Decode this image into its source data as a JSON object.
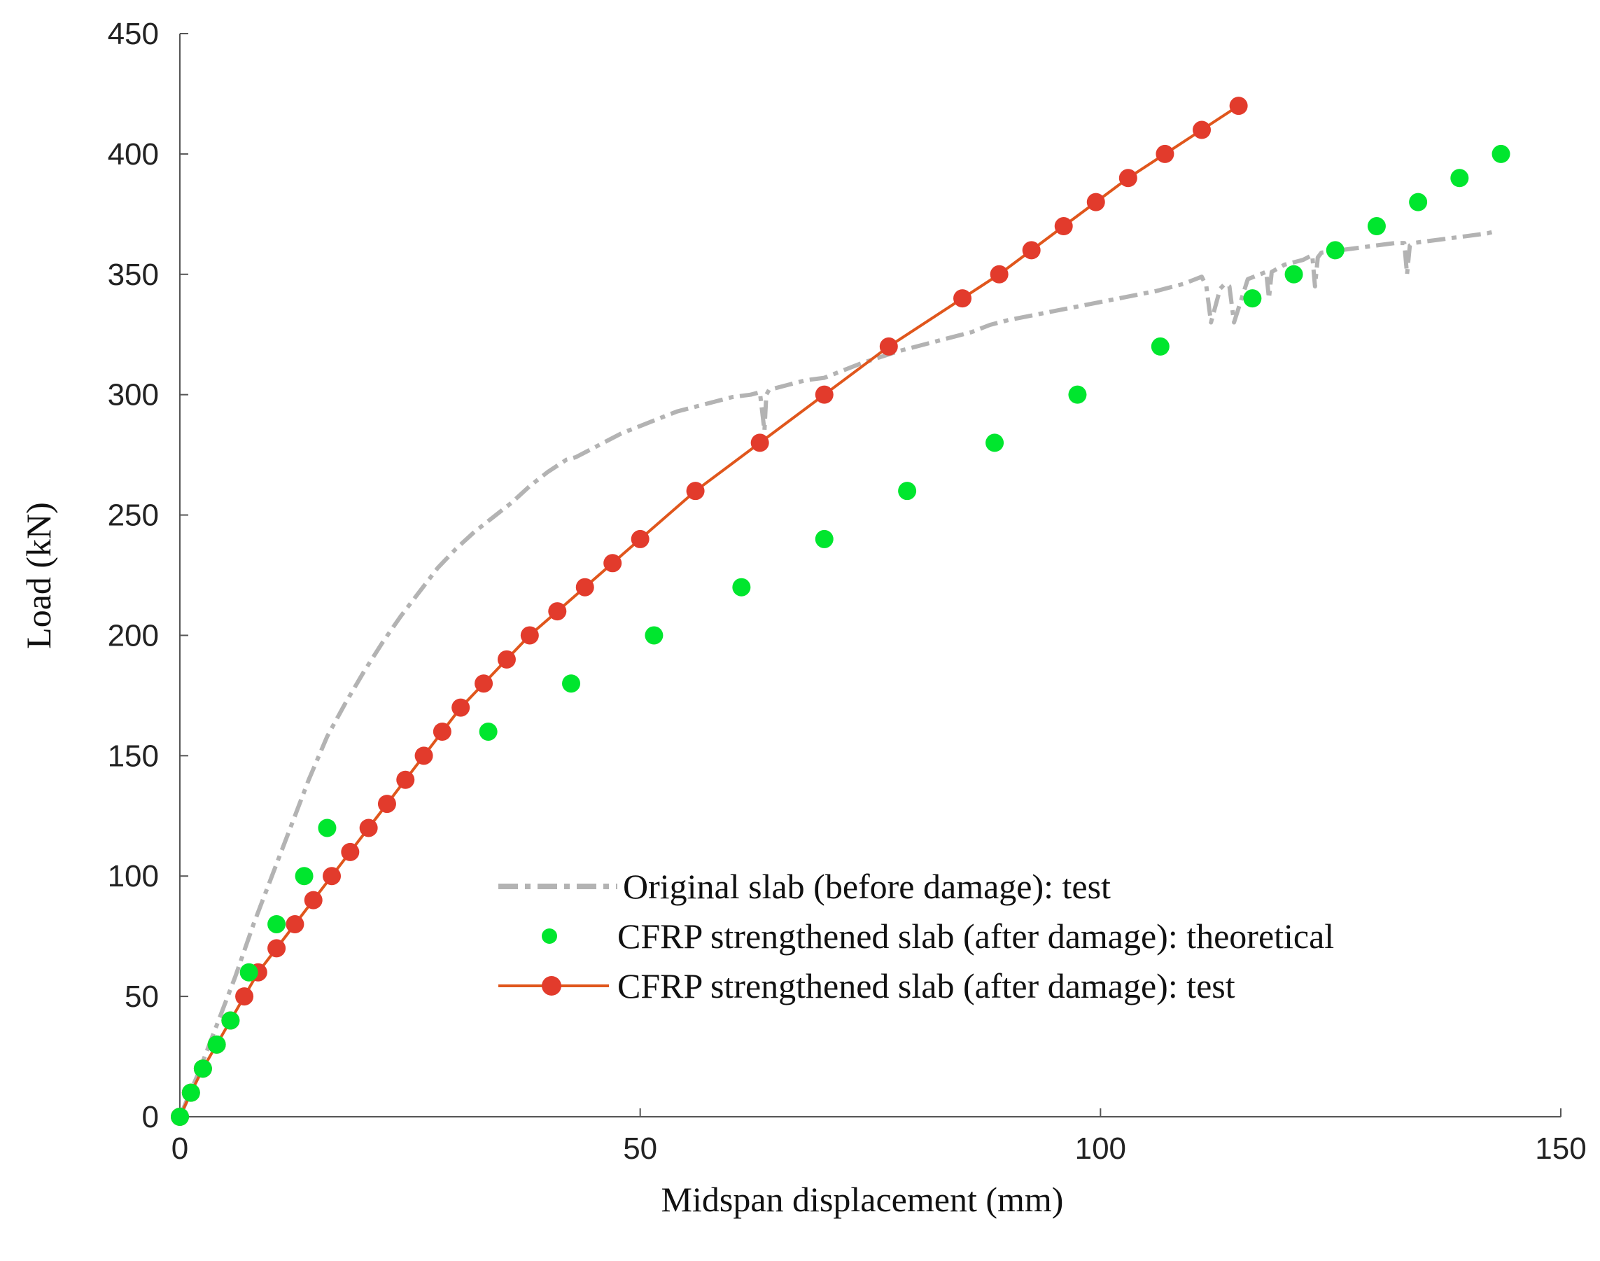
{
  "chart_data": {
    "type": "scatter",
    "title": "",
    "xlabel": "Midspan displacement (mm)",
    "ylabel": "Load (kN)",
    "xlim": [
      0,
      150
    ],
    "ylim": [
      0,
      450
    ],
    "xticks": [
      "0",
      "50",
      "100",
      "150"
    ],
    "yticks": [
      "0",
      "50",
      "100",
      "150",
      "200",
      "250",
      "300",
      "350",
      "400",
      "450"
    ],
    "grid": false,
    "legend_position": "lower-right",
    "series": [
      {
        "name": "Original slab (before damage): test",
        "style": "dash-dot line",
        "color": "#b3b3b3",
        "x": [
          0,
          2,
          4,
          6,
          8,
          10,
          12,
          14,
          16,
          18,
          20,
          22,
          24,
          26,
          28,
          30,
          32,
          34,
          36,
          38,
          40,
          42,
          43,
          44,
          46,
          48,
          50,
          52,
          54,
          56,
          58,
          60,
          62,
          63,
          63.5,
          63.7,
          64,
          66,
          68,
          70,
          72,
          74,
          78,
          82,
          86,
          88,
          90,
          94,
          98,
          102,
          106,
          109,
          111,
          111.5,
          112,
          113,
          113.5,
          114,
          114.5,
          116,
          118,
          118.3,
          118.6,
          120,
          122,
          123,
          123.3,
          123.6,
          124,
          126,
          128,
          130,
          132,
          133,
          133.3,
          133.6,
          134,
          136,
          138,
          140,
          142,
          143
        ],
        "y": [
          0,
          18,
          38,
          58,
          80,
          100,
          120,
          140,
          158,
          172,
          185,
          197,
          208,
          218,
          228,
          236,
          243,
          249,
          255,
          262,
          268,
          273,
          274,
          276,
          280,
          284,
          287,
          290,
          293,
          295,
          297,
          299,
          300,
          301,
          285,
          300,
          302,
          304,
          306,
          307,
          310,
          313,
          318,
          322,
          326,
          329,
          331,
          334,
          337,
          340,
          343,
          346,
          349,
          345,
          330,
          344,
          346,
          345,
          330,
          348,
          351,
          340,
          351,
          354,
          356,
          358,
          345,
          357,
          359,
          360,
          361,
          362,
          363,
          363,
          350,
          362,
          363,
          364,
          365,
          366,
          367,
          368
        ]
      },
      {
        "name": "CFRP strengthened slab (after damage): theoretical",
        "style": "markers",
        "color": "#00e62e",
        "x": [
          0,
          1.2,
          2.5,
          4,
          5.5,
          7.5,
          10.5,
          13.5,
          16,
          33.5,
          42.5,
          51.5,
          61,
          70,
          79,
          88.5,
          97.5,
          106.5,
          116.5,
          121,
          125.5,
          130,
          134.5,
          139,
          143.5
        ],
        "y": [
          0,
          10,
          20,
          30,
          40,
          60,
          80,
          100,
          120,
          160,
          180,
          200,
          220,
          240,
          260,
          280,
          300,
          320,
          340,
          350,
          360,
          370,
          380,
          390,
          400
        ]
      },
      {
        "name": "CFRP strengthened slab (after damage): test",
        "style": "line with markers",
        "color": "#e23b2c",
        "line_color": "#e0561c",
        "x": [
          0,
          1.2,
          2.5,
          4,
          5.5,
          7,
          8.5,
          10.5,
          12.5,
          14.5,
          16.5,
          18.5,
          20.5,
          22.5,
          24.5,
          26.5,
          28.5,
          30.5,
          33,
          35.5,
          38,
          41,
          44,
          47,
          50,
          56,
          63,
          70,
          77,
          85,
          89,
          92.5,
          96,
          99.5,
          103,
          107,
          111,
          115
        ],
        "y": [
          0,
          10,
          20,
          30,
          40,
          50,
          60,
          70,
          80,
          90,
          100,
          110,
          120,
          130,
          140,
          150,
          160,
          170,
          180,
          190,
          200,
          210,
          220,
          230,
          240,
          260,
          280,
          300,
          320,
          340,
          350,
          360,
          370,
          380,
          390,
          400,
          410,
          420
        ]
      }
    ]
  }
}
